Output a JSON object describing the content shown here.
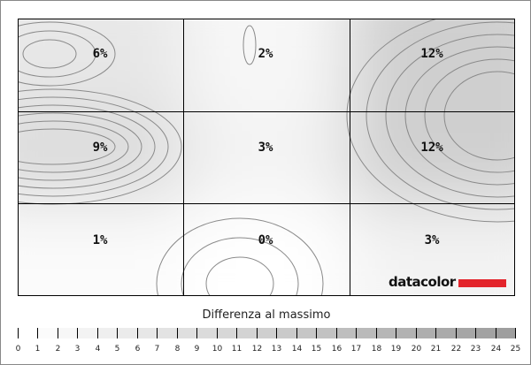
{
  "chart_data": {
    "type": "heatmap",
    "grid": {
      "rows": 3,
      "cols": 3
    },
    "cells": [
      [
        "6%",
        "2%",
        "12%"
      ],
      [
        "9%",
        "3%",
        "12%"
      ],
      [
        "1%",
        "0%",
        "3%"
      ]
    ],
    "values": [
      [
        6,
        2,
        12
      ],
      [
        9,
        3,
        12
      ],
      [
        1,
        0,
        3
      ]
    ],
    "colorbar": {
      "title": "Differenza al massimo",
      "ticks": [
        "0",
        "1",
        "2",
        "3",
        "4",
        "5",
        "6",
        "7",
        "8",
        "9",
        "10",
        "11",
        "12",
        "13",
        "14",
        "15",
        "16",
        "17",
        "18",
        "19",
        "20",
        "21",
        "22",
        "23",
        "24",
        "25"
      ],
      "range": [
        0,
        25
      ],
      "color_low": "#ffffff",
      "color_high": "#9a9a9a"
    },
    "logo": {
      "text": "datacolor",
      "bar_color": "#e3242b"
    }
  }
}
